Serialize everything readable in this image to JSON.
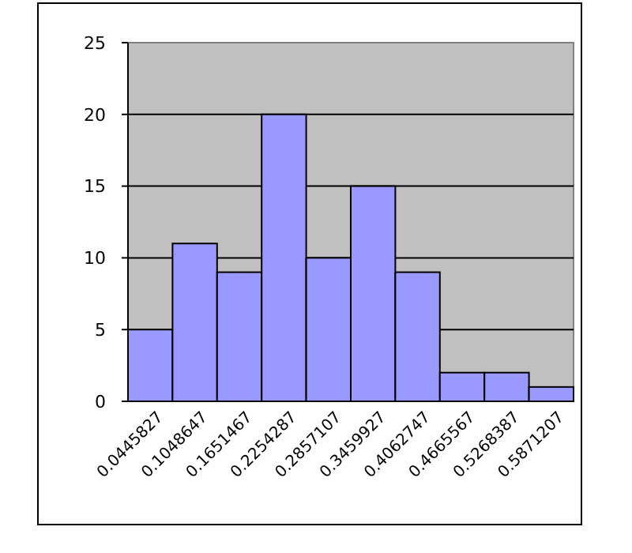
{
  "chart_data": {
    "type": "bar",
    "categories": [
      "0.0445827",
      "0.1048647",
      "0.1651467",
      "0.2254287",
      "0.2857107",
      "0.3459927",
      "0.4062747",
      "0.4665567",
      "0.5268387",
      "0.5871207"
    ],
    "values": [
      5,
      11,
      9,
      20,
      10,
      15,
      9,
      2,
      2,
      1
    ],
    "color": "#9999ff",
    "ylim": [
      0,
      25
    ],
    "yticks": [
      0,
      5,
      10,
      15,
      20,
      25
    ],
    "grid": "y"
  }
}
